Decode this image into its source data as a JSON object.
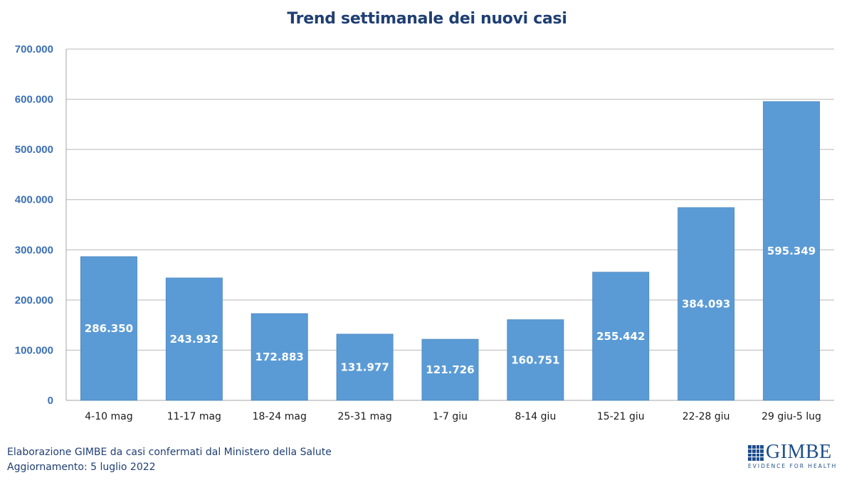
{
  "chart_data": {
    "type": "bar",
    "title": "Trend settimanale dei nuovi casi",
    "categories": [
      "4-10 mag",
      "11-17 mag",
      "18-24 mag",
      "25-31 mag",
      "1-7 giu",
      "8-14 giu",
      "15-21 giu",
      "22-28 giu",
      "29 giu-5 lug"
    ],
    "values": [
      286350,
      243932,
      172883,
      131977,
      121726,
      160751,
      255442,
      384093,
      595349
    ],
    "data_labels": [
      "286.350",
      "243.932",
      "172.883",
      "131.977",
      "121.726",
      "160.751",
      "255.442",
      "384.093",
      "595.349"
    ],
    "y_ticks": [
      0,
      100000,
      200000,
      300000,
      400000,
      500000,
      600000,
      700000
    ],
    "y_tick_labels": [
      "0",
      "100.000",
      "200.000",
      "300.000",
      "400.000",
      "500.000",
      "600.000",
      "700.000"
    ],
    "ylim": [
      0,
      700000
    ],
    "grid": true,
    "legend": "none",
    "colors": {
      "bar": "#5b9bd5",
      "bar_edge": "#4a86c0",
      "grid": "#b8b8b8",
      "axis": "#a6a6a6",
      "tick_text": "#3b6fb5",
      "title": "#1f3f73"
    }
  },
  "footer": {
    "line1": "Elaborazione GIMBE da casi confermati dal Ministero della Salute",
    "line2": "Aggiornamento: 5 luglio 2022"
  },
  "logo": {
    "name": "GIMBE",
    "tagline": "EVIDENCE FOR HEALTH",
    "icon": "gimbe-grid-icon"
  }
}
